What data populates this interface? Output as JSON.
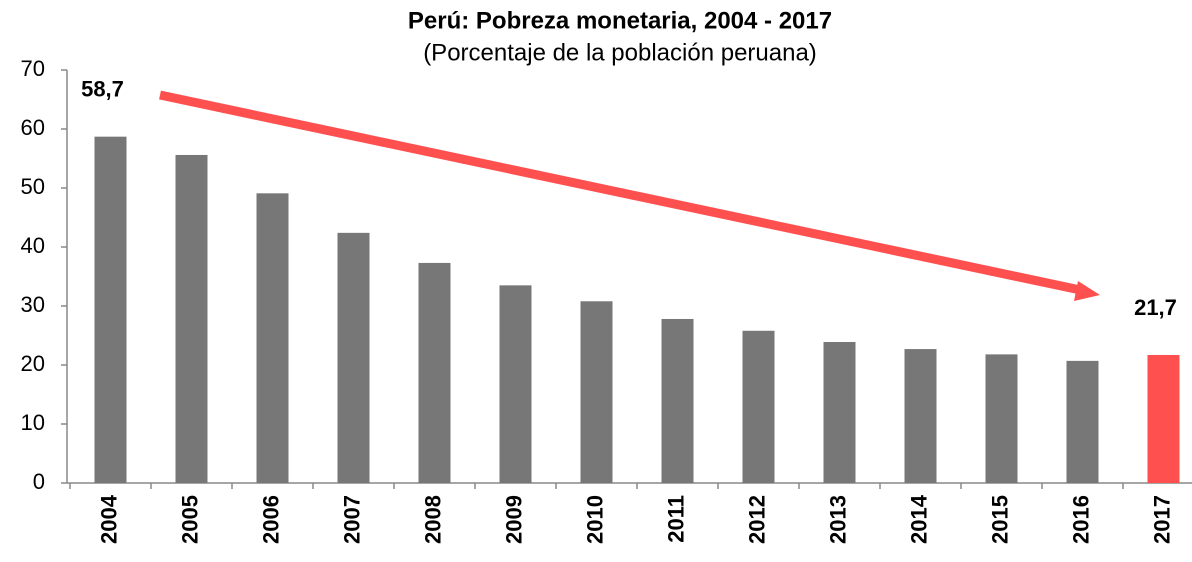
{
  "chart_data": {
    "type": "bar",
    "title": "Perú: Pobreza monetaria, 2004 - 2017",
    "subtitle": "(Porcentaje de la población peruana)",
    "categories": [
      "2004",
      "2005",
      "2006",
      "2007",
      "2008",
      "2009",
      "2010",
      "2011",
      "2012",
      "2013",
      "2014",
      "2015",
      "2016",
      "2017"
    ],
    "values": [
      58.7,
      55.6,
      49.1,
      42.4,
      37.3,
      33.5,
      30.8,
      27.8,
      25.8,
      23.9,
      22.7,
      21.8,
      20.7,
      21.7
    ],
    "value_labels": [
      "58,7",
      null,
      null,
      null,
      null,
      null,
      null,
      null,
      null,
      null,
      null,
      null,
      null,
      "21,7"
    ],
    "colors": [
      "#777777",
      "#777777",
      "#777777",
      "#777777",
      "#777777",
      "#777777",
      "#777777",
      "#777777",
      "#777777",
      "#777777",
      "#777777",
      "#777777",
      "#777777",
      "#ff5050"
    ],
    "ylim": [
      0,
      70
    ],
    "yticks": [
      0,
      10,
      20,
      30,
      40,
      50,
      60,
      70
    ],
    "grid": false
  }
}
